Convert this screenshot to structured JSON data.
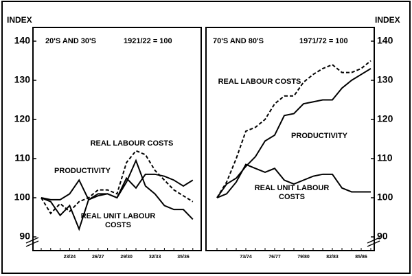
{
  "chart_data": [
    {
      "type": "line",
      "title": "20'S AND 30'S",
      "subtitle": "1921/22 = 100",
      "y_label": "INDEX",
      "categories": [
        null,
        null,
        null,
        "23/24",
        null,
        null,
        "26/27",
        null,
        null,
        "29/30",
        null,
        null,
        "32/33",
        null,
        null,
        "35/36",
        null
      ],
      "series": [
        {
          "name": "PRODUCTIVITY",
          "color": "#000000",
          "style": "solid",
          "values": [
            100,
            99.5,
            99.5,
            101,
            104.5,
            99.5,
            100.5,
            101,
            100,
            105,
            102.5,
            106,
            106,
            105.5,
            104.5,
            103,
            104.5
          ]
        },
        {
          "name": "REAL LABOUR COSTS",
          "color": "#000000",
          "style": "dashed",
          "values": [
            100,
            96,
            98.5,
            96.5,
            99,
            100,
            102,
            102,
            101,
            109,
            112,
            111,
            107,
            104.5,
            102,
            100.5,
            99
          ]
        },
        {
          "name": "REAL UNIT LABOUR COSTS",
          "color": "#000000",
          "style": "solid",
          "values": [
            100,
            99,
            95.5,
            98,
            92,
            99.5,
            101,
            101,
            100,
            104,
            109.5,
            103,
            101,
            98,
            97,
            97,
            94.5
          ]
        }
      ],
      "ylim": [
        86.5,
        143.5
      ],
      "yticks": [
        90,
        100,
        110,
        120,
        130,
        140
      ],
      "y_axis_side": "left"
    },
    {
      "type": "line",
      "title": "70'S AND 80'S",
      "subtitle": "1971/72 = 100",
      "y_label": "INDEX",
      "categories": [
        null,
        null,
        null,
        "73/74",
        null,
        null,
        "76/77",
        null,
        null,
        "79/80",
        null,
        null,
        "82/83",
        null,
        null,
        "85/86",
        null
      ],
      "series": [
        {
          "name": "PRODUCTIVITY",
          "color": "#000000",
          "style": "solid",
          "values": [
            100,
            103.5,
            105,
            108,
            110.5,
            114.5,
            116,
            121,
            121.5,
            124,
            124.5,
            125,
            125,
            128,
            130,
            131.5,
            133
          ]
        },
        {
          "name": "REAL LABOUR COSTS",
          "color": "#000000",
          "style": "dashed",
          "values": [
            100,
            104,
            110,
            117,
            118,
            120,
            124,
            126,
            126,
            129.5,
            131.5,
            133,
            134,
            132,
            132,
            133,
            135
          ]
        },
        {
          "name": "REAL UNIT LABOUR COSTS",
          "color": "#000000",
          "style": "solid",
          "values": [
            100,
            101,
            104,
            108.5,
            107.5,
            106.5,
            107.5,
            104.5,
            103.5,
            104.5,
            105.5,
            106,
            106,
            102.5,
            101.5,
            101.5,
            101.5
          ]
        }
      ],
      "ylim": [
        86.5,
        143.5
      ],
      "yticks": [
        90,
        100,
        110,
        120,
        130,
        140
      ],
      "y_axis_side": "right"
    }
  ]
}
